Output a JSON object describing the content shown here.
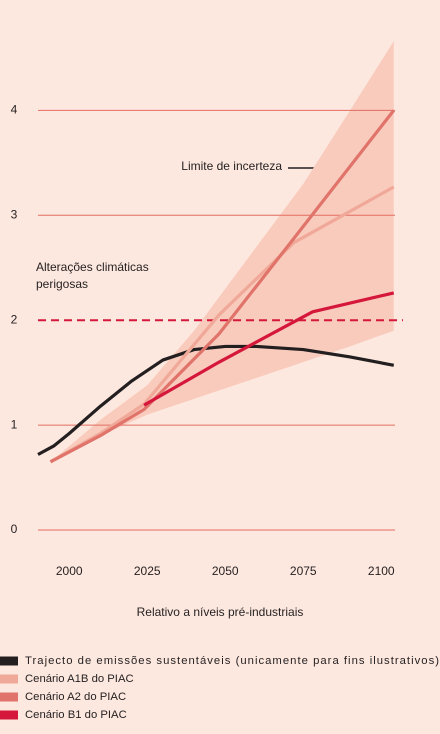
{
  "chart_data": {
    "type": "line",
    "xlabel": "Relativo a níveis pré-industriais",
    "xlim": [
      1990,
      2104.4
    ],
    "xticks": [
      2000,
      2025,
      2050,
      2075,
      2100
    ],
    "ylim": [
      0,
      5.0
    ],
    "yticks": [
      0,
      1,
      2,
      3,
      4
    ],
    "grid": true,
    "threshold": 2,
    "threshold_color": "#d4173a",
    "threshold_label": [
      "Alterações climáticas",
      "perigosas"
    ],
    "band": {
      "name": "Limite de incerteza",
      "color": "#f9cbbd",
      "x": [
        1994,
        2010,
        2025,
        2040,
        2050,
        2075,
        2090,
        2104
      ],
      "upper": [
        0.65,
        1.05,
        1.38,
        1.9,
        2.3,
        3.3,
        4.0,
        4.66
      ],
      "lower": [
        0.65,
        0.9,
        1.1,
        1.25,
        1.35,
        1.6,
        1.75,
        1.9
      ]
    },
    "series": [
      {
        "name": "Trajecto de emissões sustentáveis (unicamente para fins ilustrativos)",
        "color": "#231f20",
        "x": [
          1990,
          1995,
          2000,
          2010,
          2020,
          2030,
          2040,
          2050,
          2060,
          2075,
          2090,
          2104
        ],
        "values": [
          0.72,
          0.8,
          0.92,
          1.18,
          1.42,
          1.62,
          1.72,
          1.75,
          1.75,
          1.72,
          1.65,
          1.57
        ]
      },
      {
        "name": "Cenário A1B do PIAC",
        "color": "#f0a898",
        "x": [
          1994,
          2010,
          2024,
          2048,
          2072,
          2104
        ],
        "values": [
          0.65,
          0.92,
          1.2,
          2.05,
          2.74,
          3.27
        ]
      },
      {
        "name": "Cenário A2 do PIAC",
        "color": "#e0736a",
        "x": [
          1994,
          2010,
          2024,
          2048,
          2072,
          2104
        ],
        "values": [
          0.65,
          0.9,
          1.15,
          1.87,
          2.78,
          4.0
        ]
      },
      {
        "name": "Cenário B1 do PIAC",
        "color": "#d4173a",
        "x": [
          2024,
          2048,
          2078,
          2104
        ],
        "values": [
          1.19,
          1.6,
          2.08,
          2.26
        ]
      }
    ]
  }
}
